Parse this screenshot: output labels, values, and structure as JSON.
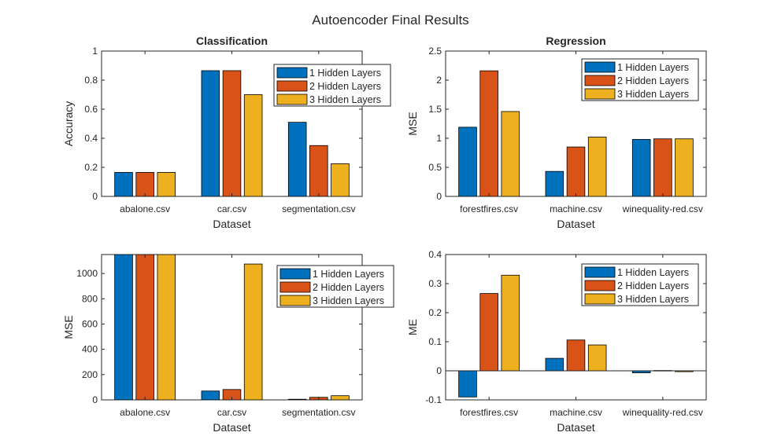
{
  "figure": {
    "title": "Autoencoder Final Results"
  },
  "colors": {
    "series": [
      "#0072BD",
      "#D95319",
      "#EDB120"
    ],
    "axis": "#262626",
    "background": "#ffffff"
  },
  "chart_data": [
    {
      "type": "bar",
      "title": "Classification",
      "xlabel": "Dataset",
      "ylabel": "Accuracy",
      "categories": [
        "abalone.csv",
        "car.csv",
        "segmentation.csv"
      ],
      "ylim": [
        0,
        1
      ],
      "yticks": [
        0,
        0.2,
        0.4,
        0.6,
        0.8,
        1
      ],
      "ytick_labels": [
        "0",
        "0.2",
        "0.4",
        "0.6",
        "0.8",
        "1"
      ],
      "legend_position": "top-right",
      "grid": false,
      "series": [
        {
          "name": "1 Hidden Layers",
          "values": [
            0.165,
            0.865,
            0.51
          ]
        },
        {
          "name": "2 Hidden Layers",
          "values": [
            0.165,
            0.865,
            0.35
          ]
        },
        {
          "name": "3 Hidden Layers",
          "values": [
            0.165,
            0.7,
            0.225
          ]
        }
      ]
    },
    {
      "type": "bar",
      "title": "Regression",
      "xlabel": "Dataset",
      "ylabel": "MSE",
      "categories": [
        "forestfires.csv",
        "machine.csv",
        "winequality-red.csv"
      ],
      "ylim": [
        0,
        2.5
      ],
      "yticks": [
        0,
        0.5,
        1,
        1.5,
        2,
        2.5
      ],
      "ytick_labels": [
        "0",
        "0.5",
        "1",
        "1.5",
        "2",
        "2.5"
      ],
      "legend_position": "top-right",
      "grid": false,
      "series": [
        {
          "name": "1 Hidden Layers",
          "values": [
            1.19,
            0.43,
            0.98
          ]
        },
        {
          "name": "2 Hidden Layers",
          "values": [
            2.16,
            0.85,
            0.99
          ]
        },
        {
          "name": "3 Hidden Layers",
          "values": [
            1.46,
            1.02,
            0.99
          ]
        }
      ]
    },
    {
      "type": "bar",
      "title": "",
      "xlabel": "Dataset",
      "ylabel": "MSE",
      "categories": [
        "abalone.csv",
        "car.csv",
        "segmentation.csv"
      ],
      "ylim": [
        0,
        1150
      ],
      "yticks": [
        0,
        200,
        400,
        600,
        800,
        1000
      ],
      "ytick_labels": [
        "0",
        "200",
        "400",
        "600",
        "800",
        "1000"
      ],
      "legend_position": "top-right",
      "grid": false,
      "series": [
        {
          "name": "1 Hidden Layers",
          "values": [
            1150,
            70,
            5
          ]
        },
        {
          "name": "2 Hidden Layers",
          "values": [
            1150,
            82,
            20
          ]
        },
        {
          "name": "3 Hidden Layers",
          "values": [
            1150,
            1075,
            33
          ]
        }
      ]
    },
    {
      "type": "bar",
      "title": "",
      "xlabel": "Dataset",
      "ylabel": "ME",
      "categories": [
        "forestfires.csv",
        "machine.csv",
        "winequality-red.csv"
      ],
      "ylim": [
        -0.1,
        0.4
      ],
      "yticks": [
        -0.1,
        0,
        0.1,
        0.2,
        0.3,
        0.4
      ],
      "ytick_labels": [
        "-0.1",
        "0",
        "0.1",
        "0.2",
        "0.3",
        "0.4"
      ],
      "legend_position": "top-right",
      "grid": false,
      "series": [
        {
          "name": "1 Hidden Layers",
          "values": [
            -0.09,
            0.043,
            -0.007
          ]
        },
        {
          "name": "2 Hidden Layers",
          "values": [
            0.266,
            0.106,
            0.001
          ]
        },
        {
          "name": "3 Hidden Layers",
          "values": [
            0.329,
            0.089,
            -0.003
          ]
        }
      ]
    }
  ]
}
